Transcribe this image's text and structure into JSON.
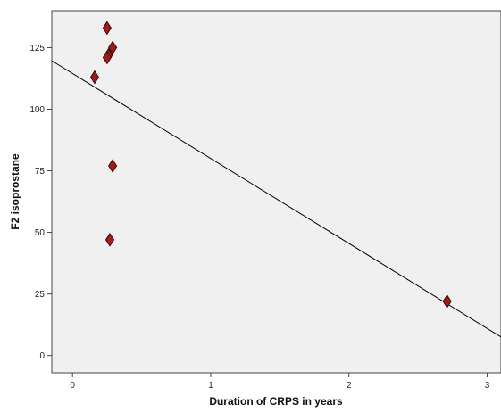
{
  "chart_data": {
    "type": "scatter",
    "title": "",
    "xlabel": "Duration of CRPS in years",
    "ylabel": "F2 isoprostane",
    "xlim": [
      -0.15,
      3.1
    ],
    "ylim": [
      -7,
      140
    ],
    "x_ticks": [
      0,
      1,
      2,
      3
    ],
    "y_ticks": [
      0,
      25,
      50,
      75,
      100,
      125
    ],
    "grid": false,
    "points": [
      {
        "x": 0.25,
        "y": 133
      },
      {
        "x": 0.29,
        "y": 125
      },
      {
        "x": 0.26,
        "y": 122
      },
      {
        "x": 0.25,
        "y": 121
      },
      {
        "x": 0.16,
        "y": 113
      },
      {
        "x": 0.29,
        "y": 77
      },
      {
        "x": 0.27,
        "y": 47
      },
      {
        "x": 2.71,
        "y": 22
      }
    ],
    "fit_line": {
      "type": "linear",
      "intercept": 114.5,
      "slope": -34.5
    },
    "colors": {
      "plot_background": "#f0f0f0",
      "marker_fill": "#9e1b1b",
      "marker_stroke": "#3a0a0a",
      "line": "#000000"
    }
  }
}
